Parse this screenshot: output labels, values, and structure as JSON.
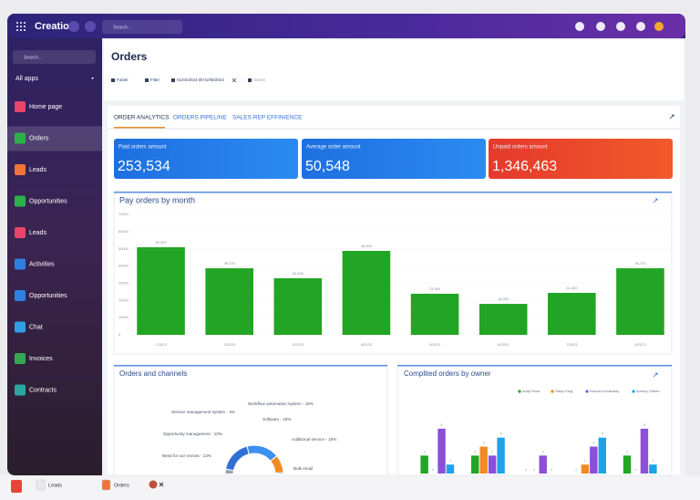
{
  "app": {
    "brand": "Creatio",
    "top_search": "Search...",
    "sidebar_search": "Search...",
    "all_apps": "All apps",
    "nav": [
      "Home page",
      "Orders",
      "Leads",
      "Opportunities",
      "Leads",
      "Activities",
      "Opportunities",
      "Chat",
      "Invoices",
      "Contracts"
    ]
  },
  "page": {
    "title": "Orders",
    "toolbar": {
      "folder": "Folder",
      "filter": "Filter",
      "date_range": "01/04/2023 till 01/08/2023",
      "owner": "Owner"
    },
    "tabs": [
      "ORDER ANALYTICS",
      "ORDERS PIPELINE",
      "SALES REP EFFINIENCE"
    ]
  },
  "kpis": [
    {
      "label": "Paid orders amount",
      "value": "253,534"
    },
    {
      "label": "Average order amount",
      "value": "50,548"
    },
    {
      "label": "Unpaid orders amount",
      "value": "1,346,463"
    }
  ],
  "chart_data": [
    {
      "type": "bar",
      "title": "Pay orders by month",
      "categories": [
        "1/2023",
        "2/2023",
        "3/2023",
        "4/2023",
        "5/2023",
        "6/2023",
        "7/2023",
        "8/2023"
      ],
      "values": [
        50900,
        38700,
        32900,
        48800,
        23900,
        18000,
        24400,
        38700
      ],
      "value_labels": [
        "50,900",
        "38,700",
        "32,900",
        "48,800",
        "23,900",
        "18,000",
        "24,400",
        "38,700"
      ],
      "color": "#22a524",
      "ylim": [
        0,
        70000
      ],
      "yticks": [
        0,
        10000,
        20000,
        30000,
        40000,
        50000,
        60000,
        70000
      ]
    },
    {
      "type": "pie",
      "title": "Orders and channels",
      "categories": [
        "Service management system - 3%",
        "Workflow automation system - 18%",
        "Software - 18%",
        "Opportunity management - 10%",
        "Additional service - 18%",
        "Need for our srvices - 13%",
        "Bulk email"
      ],
      "values": [
        3,
        18,
        18,
        10,
        18,
        13,
        20
      ],
      "colors": [
        "#9aa3b5",
        "#2f6fd6",
        "#3d8ff0",
        "#f08a24",
        "#1f5fbf",
        "#53a8f5",
        "#284c8c"
      ]
    },
    {
      "type": "grouped-bar",
      "title": "Complited orders by owner",
      "categories": [
        null,
        null,
        null,
        null,
        null
      ],
      "series": [
        {
          "name": "Andy Ross",
          "color": "#22a524",
          "values": [
            2,
            2,
            0,
            0,
            2
          ]
        },
        {
          "name": "Stacy King",
          "color": "#f08a24",
          "values": [
            0,
            3,
            0,
            1,
            0
          ]
        },
        {
          "name": "Roman Kovanskiy",
          "color": "#8c4fd8",
          "values": [
            5,
            2,
            2,
            3,
            5
          ]
        },
        {
          "name": "Audrey Gilbert",
          "color": "#1fa3e8",
          "values": [
            1,
            4,
            0,
            4,
            1
          ]
        }
      ],
      "ylim": [
        0,
        6
      ]
    }
  ],
  "taskbar": {
    "items": [
      "Leads",
      "Orders"
    ]
  }
}
